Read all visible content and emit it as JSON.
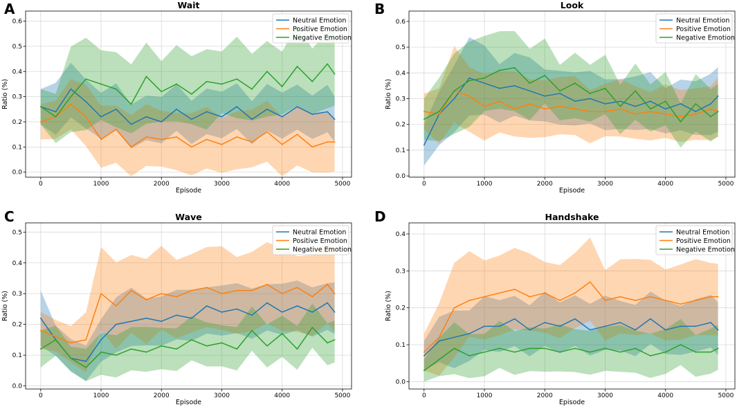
{
  "figure": {
    "colors": {
      "neutral": "#1f77b4",
      "positive": "#ff7f0e",
      "negative": "#2ca02c"
    }
  },
  "chart_data": [
    {
      "type": "line",
      "panel_label": "A",
      "title": "Wait",
      "xlabel": "Episode",
      "ylabel": "Ratio (%)",
      "xlim": [
        -250,
        5150
      ],
      "ylim": [
        -0.02,
        0.64
      ],
      "xticks": [
        0,
        1000,
        2000,
        3000,
        4000,
        5000
      ],
      "yticks": [
        0.0,
        0.1,
        0.2,
        0.3,
        0.4,
        0.5,
        0.6
      ],
      "ytick_labels": [
        "0.0",
        "0.1",
        "0.2",
        "0.3",
        "0.4",
        "0.5",
        "0.6"
      ],
      "grid": true,
      "legend_position": "top-right",
      "x": [
        0,
        250,
        500,
        750,
        1000,
        1250,
        1500,
        1750,
        2000,
        2250,
        2500,
        2750,
        3000,
        3250,
        3500,
        3750,
        4000,
        4250,
        4500,
        4750,
        4870
      ],
      "series": [
        {
          "name": "Neutral Emotion",
          "color": "#1f77b4",
          "values": [
            0.26,
            0.24,
            0.33,
            0.28,
            0.22,
            0.25,
            0.19,
            0.22,
            0.2,
            0.25,
            0.21,
            0.24,
            0.22,
            0.26,
            0.21,
            0.25,
            0.22,
            0.26,
            0.23,
            0.24,
            0.21
          ],
          "band": [
            0.07,
            0.1,
            0.11,
            0.1,
            0.09,
            0.09,
            0.09,
            0.09,
            0.09,
            0.09,
            0.09,
            0.09,
            0.09,
            0.09,
            0.09,
            0.09,
            0.09,
            0.09,
            0.09,
            0.09,
            0.09
          ]
        },
        {
          "name": "Positive Emotion",
          "color": "#ff7f0e",
          "values": [
            0.2,
            0.22,
            0.27,
            0.22,
            0.13,
            0.17,
            0.1,
            0.14,
            0.13,
            0.14,
            0.1,
            0.13,
            0.11,
            0.14,
            0.12,
            0.16,
            0.11,
            0.15,
            0.1,
            0.12,
            0.12
          ],
          "band": [
            0.07,
            0.08,
            0.1,
            0.12,
            0.12,
            0.12,
            0.12,
            0.12,
            0.11,
            0.12,
            0.12,
            0.12,
            0.11,
            0.12,
            0.11,
            0.12,
            0.12,
            0.12,
            0.11,
            0.12,
            0.11
          ]
        },
        {
          "name": "Negative Emotion",
          "color": "#2ca02c",
          "values": [
            0.26,
            0.22,
            0.3,
            0.37,
            0.35,
            0.33,
            0.27,
            0.38,
            0.32,
            0.35,
            0.31,
            0.36,
            0.35,
            0.37,
            0.33,
            0.4,
            0.34,
            0.42,
            0.36,
            0.43,
            0.39
          ],
          "band": [
            0.07,
            0.1,
            0.16,
            0.19,
            0.14,
            0.15,
            0.13,
            0.17,
            0.12,
            0.15,
            0.13,
            0.17,
            0.12,
            0.16,
            0.13,
            0.16,
            0.12,
            0.16,
            0.13,
            0.16,
            0.14
          ]
        }
      ]
    },
    {
      "type": "line",
      "panel_label": "B",
      "title": "Look",
      "xlabel": "Episode",
      "ylabel": "Ratio (%)",
      "xlim": [
        -250,
        5150
      ],
      "ylim": [
        -0.005,
        0.64
      ],
      "xticks": [
        0,
        1000,
        2000,
        3000,
        4000,
        5000
      ],
      "yticks": [
        0.0,
        0.1,
        0.2,
        0.3,
        0.4,
        0.5,
        0.6
      ],
      "ytick_labels": [
        "0.0",
        "0.1",
        "0.2",
        "0.3",
        "0.4",
        "0.5",
        "0.6"
      ],
      "grid": true,
      "legend_position": "top-right",
      "x": [
        0,
        250,
        500,
        750,
        1000,
        1250,
        1500,
        1750,
        2000,
        2250,
        2500,
        2750,
        3000,
        3250,
        3500,
        3750,
        4000,
        4250,
        4500,
        4750,
        4870
      ],
      "series": [
        {
          "name": "Neutral Emotion",
          "color": "#1f77b4",
          "values": [
            0.12,
            0.24,
            0.3,
            0.38,
            0.36,
            0.34,
            0.35,
            0.33,
            0.31,
            0.32,
            0.29,
            0.3,
            0.28,
            0.29,
            0.27,
            0.29,
            0.26,
            0.28,
            0.25,
            0.28,
            0.31
          ],
          "band": [
            0.08,
            0.11,
            0.13,
            0.15,
            0.13,
            0.12,
            0.12,
            0.12,
            0.1,
            0.11,
            0.1,
            0.1,
            0.1,
            0.1,
            0.1,
            0.11,
            0.09,
            0.1,
            0.1,
            0.12,
            0.13
          ]
        },
        {
          "name": "Positive Emotion",
          "color": "#ff7f0e",
          "values": [
            0.25,
            0.24,
            0.33,
            0.31,
            0.27,
            0.29,
            0.26,
            0.28,
            0.26,
            0.27,
            0.26,
            0.25,
            0.25,
            0.26,
            0.24,
            0.25,
            0.24,
            0.23,
            0.24,
            0.26,
            0.25
          ],
          "band": [
            0.07,
            0.11,
            0.14,
            0.13,
            0.13,
            0.12,
            0.12,
            0.12,
            0.11,
            0.11,
            0.11,
            0.11,
            0.1,
            0.11,
            0.1,
            0.1,
            0.1,
            0.1,
            0.1,
            0.11,
            0.11
          ]
        },
        {
          "name": "Negative Emotion",
          "color": "#2ca02c",
          "values": [
            0.22,
            0.25,
            0.33,
            0.37,
            0.38,
            0.41,
            0.42,
            0.36,
            0.39,
            0.33,
            0.36,
            0.32,
            0.34,
            0.27,
            0.33,
            0.26,
            0.29,
            0.21,
            0.28,
            0.23,
            0.25
          ],
          "band": [
            0.08,
            0.12,
            0.16,
            0.17,
            0.14,
            0.15,
            0.16,
            0.14,
            0.12,
            0.11,
            0.13,
            0.11,
            0.11,
            0.1,
            0.11,
            0.09,
            0.1,
            0.09,
            0.11,
            0.1,
            0.1
          ]
        }
      ]
    },
    {
      "type": "line",
      "panel_label": "C",
      "title": "Wave",
      "xlabel": "Episode",
      "ylabel": "Ratio (%)",
      "xlim": [
        -250,
        5150
      ],
      "ylim": [
        -0.01,
        0.53
      ],
      "xticks": [
        0,
        1000,
        2000,
        3000,
        4000,
        5000
      ],
      "yticks": [
        0.0,
        0.1,
        0.2,
        0.3,
        0.4,
        0.5
      ],
      "ytick_labels": [
        "0.0",
        "0.1",
        "0.2",
        "0.3",
        "0.4",
        "0.5"
      ],
      "grid": true,
      "legend_position": "top-right",
      "x": [
        0,
        250,
        500,
        750,
        1000,
        1250,
        1500,
        1750,
        2000,
        2250,
        2500,
        2750,
        3000,
        3250,
        3500,
        3750,
        4000,
        4250,
        4500,
        4750,
        4870
      ],
      "series": [
        {
          "name": "Neutral Emotion",
          "color": "#1f77b4",
          "values": [
            0.22,
            0.15,
            0.09,
            0.08,
            0.15,
            0.2,
            0.21,
            0.22,
            0.21,
            0.23,
            0.22,
            0.26,
            0.24,
            0.25,
            0.23,
            0.27,
            0.24,
            0.26,
            0.24,
            0.27,
            0.24
          ],
          "band": [
            0.09,
            0.05,
            0.05,
            0.06,
            0.07,
            0.09,
            0.09,
            0.08,
            0.08,
            0.08,
            0.08,
            0.08,
            0.08,
            0.08,
            0.08,
            0.08,
            0.08,
            0.08,
            0.08,
            0.08,
            0.08
          ]
        },
        {
          "name": "Positive Emotion",
          "color": "#ff7f0e",
          "values": [
            0.18,
            0.16,
            0.14,
            0.15,
            0.3,
            0.26,
            0.31,
            0.28,
            0.3,
            0.29,
            0.31,
            0.32,
            0.3,
            0.31,
            0.31,
            0.33,
            0.3,
            0.32,
            0.29,
            0.33,
            0.3
          ],
          "band": [
            0.06,
            0.05,
            0.06,
            0.1,
            0.13,
            0.14,
            0.13,
            0.14,
            0.13,
            0.13,
            0.13,
            0.13,
            0.13,
            0.13,
            0.13,
            0.13,
            0.13,
            0.13,
            0.13,
            0.13,
            0.13
          ]
        },
        {
          "name": "Negative Emotion",
          "color": "#2ca02c",
          "values": [
            0.12,
            0.15,
            0.09,
            0.06,
            0.11,
            0.1,
            0.12,
            0.11,
            0.13,
            0.12,
            0.15,
            0.13,
            0.14,
            0.12,
            0.18,
            0.13,
            0.17,
            0.12,
            0.19,
            0.14,
            0.15
          ],
          "band": [
            0.06,
            0.05,
            0.04,
            0.05,
            0.07,
            0.07,
            0.07,
            0.07,
            0.07,
            0.07,
            0.07,
            0.07,
            0.07,
            0.07,
            0.07,
            0.07,
            0.07,
            0.07,
            0.07,
            0.07,
            0.07
          ]
        }
      ]
    },
    {
      "type": "line",
      "panel_label": "D",
      "title": "Handshake",
      "xlabel": "Episode",
      "ylabel": "Ratio (%)",
      "xlim": [
        -250,
        5150
      ],
      "ylim": [
        -0.02,
        0.43
      ],
      "xticks": [
        0,
        1000,
        2000,
        3000,
        4000,
        5000
      ],
      "yticks": [
        0.0,
        0.1,
        0.2,
        0.3,
        0.4
      ],
      "ytick_labels": [
        "0.0",
        "0.1",
        "0.2",
        "0.3",
        "0.4"
      ],
      "grid": true,
      "legend_position": "top-right",
      "x": [
        0,
        250,
        500,
        750,
        1000,
        1250,
        1500,
        1750,
        2000,
        2250,
        2500,
        2750,
        3000,
        3250,
        3500,
        3750,
        4000,
        4250,
        4500,
        4750,
        4870
      ],
      "series": [
        {
          "name": "Neutral Emotion",
          "color": "#1f77b4",
          "values": [
            0.07,
            0.11,
            0.12,
            0.13,
            0.15,
            0.15,
            0.17,
            0.14,
            0.16,
            0.15,
            0.17,
            0.14,
            0.15,
            0.16,
            0.14,
            0.17,
            0.14,
            0.15,
            0.15,
            0.16,
            0.14
          ],
          "band": [
            0.04,
            0.06,
            0.08,
            0.07,
            0.07,
            0.07,
            0.07,
            0.07,
            0.07,
            0.07,
            0.07,
            0.07,
            0.07,
            0.07,
            0.07,
            0.07,
            0.07,
            0.07,
            0.07,
            0.07,
            0.07
          ]
        },
        {
          "name": "Positive Emotion",
          "color": "#ff7f0e",
          "values": [
            0.08,
            0.12,
            0.2,
            0.22,
            0.23,
            0.24,
            0.25,
            0.23,
            0.24,
            0.22,
            0.24,
            0.27,
            0.22,
            0.23,
            0.22,
            0.23,
            0.22,
            0.21,
            0.22,
            0.23,
            0.23
          ],
          "band": [
            0.05,
            0.1,
            0.13,
            0.11,
            0.11,
            0.11,
            0.11,
            0.1,
            0.1,
            0.1,
            0.1,
            0.11,
            0.1,
            0.1,
            0.1,
            0.1,
            0.1,
            0.1,
            0.1,
            0.1,
            0.1
          ]
        },
        {
          "name": "Negative Emotion",
          "color": "#2ca02c",
          "values": [
            0.03,
            0.06,
            0.09,
            0.07,
            0.08,
            0.09,
            0.08,
            0.09,
            0.09,
            0.08,
            0.09,
            0.08,
            0.09,
            0.08,
            0.09,
            0.07,
            0.08,
            0.1,
            0.08,
            0.08,
            0.09
          ],
          "band": [
            0.03,
            0.05,
            0.07,
            0.06,
            0.06,
            0.06,
            0.06,
            0.06,
            0.06,
            0.06,
            0.06,
            0.06,
            0.06,
            0.06,
            0.06,
            0.06,
            0.06,
            0.06,
            0.06,
            0.06,
            0.06
          ]
        }
      ]
    }
  ]
}
